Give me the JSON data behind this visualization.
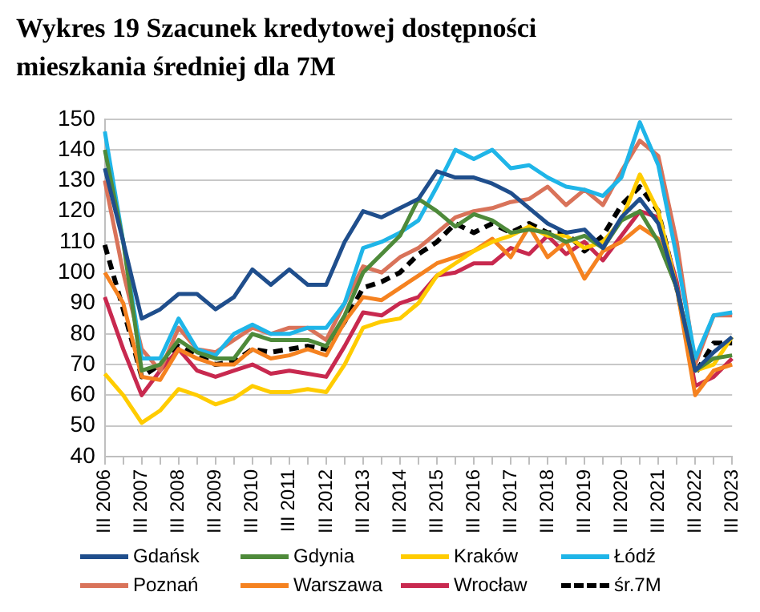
{
  "chart_data": {
    "type": "line",
    "title": "Wykres 19 Szacunek kredytowej dostępności mieszkania średniej dla 7M",
    "categories": [
      "III 2006",
      null,
      "III 2007",
      null,
      "III 2008",
      null,
      "III 2009",
      null,
      "III 2010",
      null,
      "III 2011",
      null,
      "III 2012",
      null,
      "III 2013",
      null,
      "III 2014",
      null,
      "III 2015",
      null,
      "III 2016",
      null,
      "III 2017",
      null,
      "III 2018",
      null,
      "III 2019",
      null,
      "III 2020",
      null,
      "III 2021",
      null,
      "III 2022",
      null,
      "III 2023"
    ],
    "series": [
      {
        "name": "Gdańsk",
        "color": "#1f4e8c",
        "values": [
          134,
          110,
          85,
          88,
          93,
          93,
          88,
          92,
          101,
          96,
          101,
          96,
          96,
          110,
          120,
          118,
          121,
          124,
          133,
          131,
          131,
          129,
          126,
          121,
          116,
          113,
          114,
          108,
          118,
          124,
          116,
          95,
          68,
          74,
          79
        ]
      },
      {
        "name": "Gdynia",
        "color": "#4e8a3a",
        "values": [
          140,
          110,
          68,
          70,
          78,
          74,
          72,
          72,
          80,
          78,
          78,
          78,
          76,
          86,
          100,
          106,
          112,
          124,
          120,
          115,
          119,
          117,
          113,
          114,
          113,
          110,
          112,
          108,
          117,
          120,
          110,
          95,
          68,
          72,
          73
        ]
      },
      {
        "name": "Kraków",
        "color": "#ffcc00",
        "values": [
          67,
          60,
          51,
          55,
          62,
          60,
          57,
          59,
          63,
          61,
          61,
          62,
          61,
          70,
          82,
          84,
          85,
          90,
          99,
          103,
          107,
          110,
          112,
          115,
          112,
          112,
          108,
          110,
          117,
          132,
          120,
          95,
          68,
          70,
          79
        ]
      },
      {
        "name": "Łódź",
        "color": "#1fb5e8",
        "values": [
          146,
          110,
          72,
          72,
          85,
          75,
          73,
          80,
          83,
          80,
          80,
          82,
          82,
          90,
          108,
          110,
          113,
          117,
          128,
          140,
          137,
          140,
          134,
          135,
          131,
          128,
          127,
          125,
          131,
          149,
          135,
          105,
          72,
          86,
          87
        ]
      },
      {
        "name": "Poznań",
        "color": "#d9735a",
        "values": [
          130,
          100,
          75,
          68,
          82,
          75,
          74,
          78,
          82,
          80,
          82,
          82,
          78,
          90,
          102,
          100,
          105,
          108,
          113,
          118,
          120,
          121,
          123,
          124,
          128,
          122,
          127,
          122,
          133,
          143,
          138,
          110,
          70,
          86,
          86
        ]
      },
      {
        "name": "Warszawa",
        "color": "#f58220",
        "values": [
          100,
          90,
          66,
          65,
          75,
          72,
          70,
          70,
          75,
          72,
          73,
          75,
          73,
          84,
          92,
          91,
          95,
          99,
          103,
          105,
          107,
          111,
          105,
          115,
          105,
          110,
          98,
          107,
          110,
          115,
          111,
          95,
          60,
          68,
          70
        ]
      },
      {
        "name": "Wrocław",
        "color": "#c8294f",
        "values": [
          92,
          75,
          60,
          68,
          75,
          68,
          66,
          68,
          70,
          67,
          68,
          67,
          66,
          76,
          87,
          86,
          90,
          92,
          99,
          100,
          103,
          103,
          108,
          106,
          112,
          106,
          110,
          104,
          112,
          120,
          118,
          97,
          63,
          66,
          72
        ]
      },
      {
        "name": "śr.7M",
        "color": "#000000",
        "line_style": "dashed",
        "values": [
          109,
          88,
          66,
          70,
          76,
          73,
          70,
          71,
          75,
          74,
          75,
          76,
          75,
          84,
          95,
          97,
          100,
          106,
          110,
          116,
          113,
          116,
          113,
          116,
          113,
          113,
          107,
          112,
          122,
          128,
          120,
          95,
          67,
          77,
          77
        ]
      }
    ],
    "ylim": [
      40,
      150
    ],
    "yticks": [
      40,
      50,
      60,
      70,
      80,
      90,
      100,
      110,
      120,
      130,
      140,
      150
    ],
    "grid": "y",
    "legend": "bottom",
    "marker": "none",
    "line_style": "solid"
  }
}
